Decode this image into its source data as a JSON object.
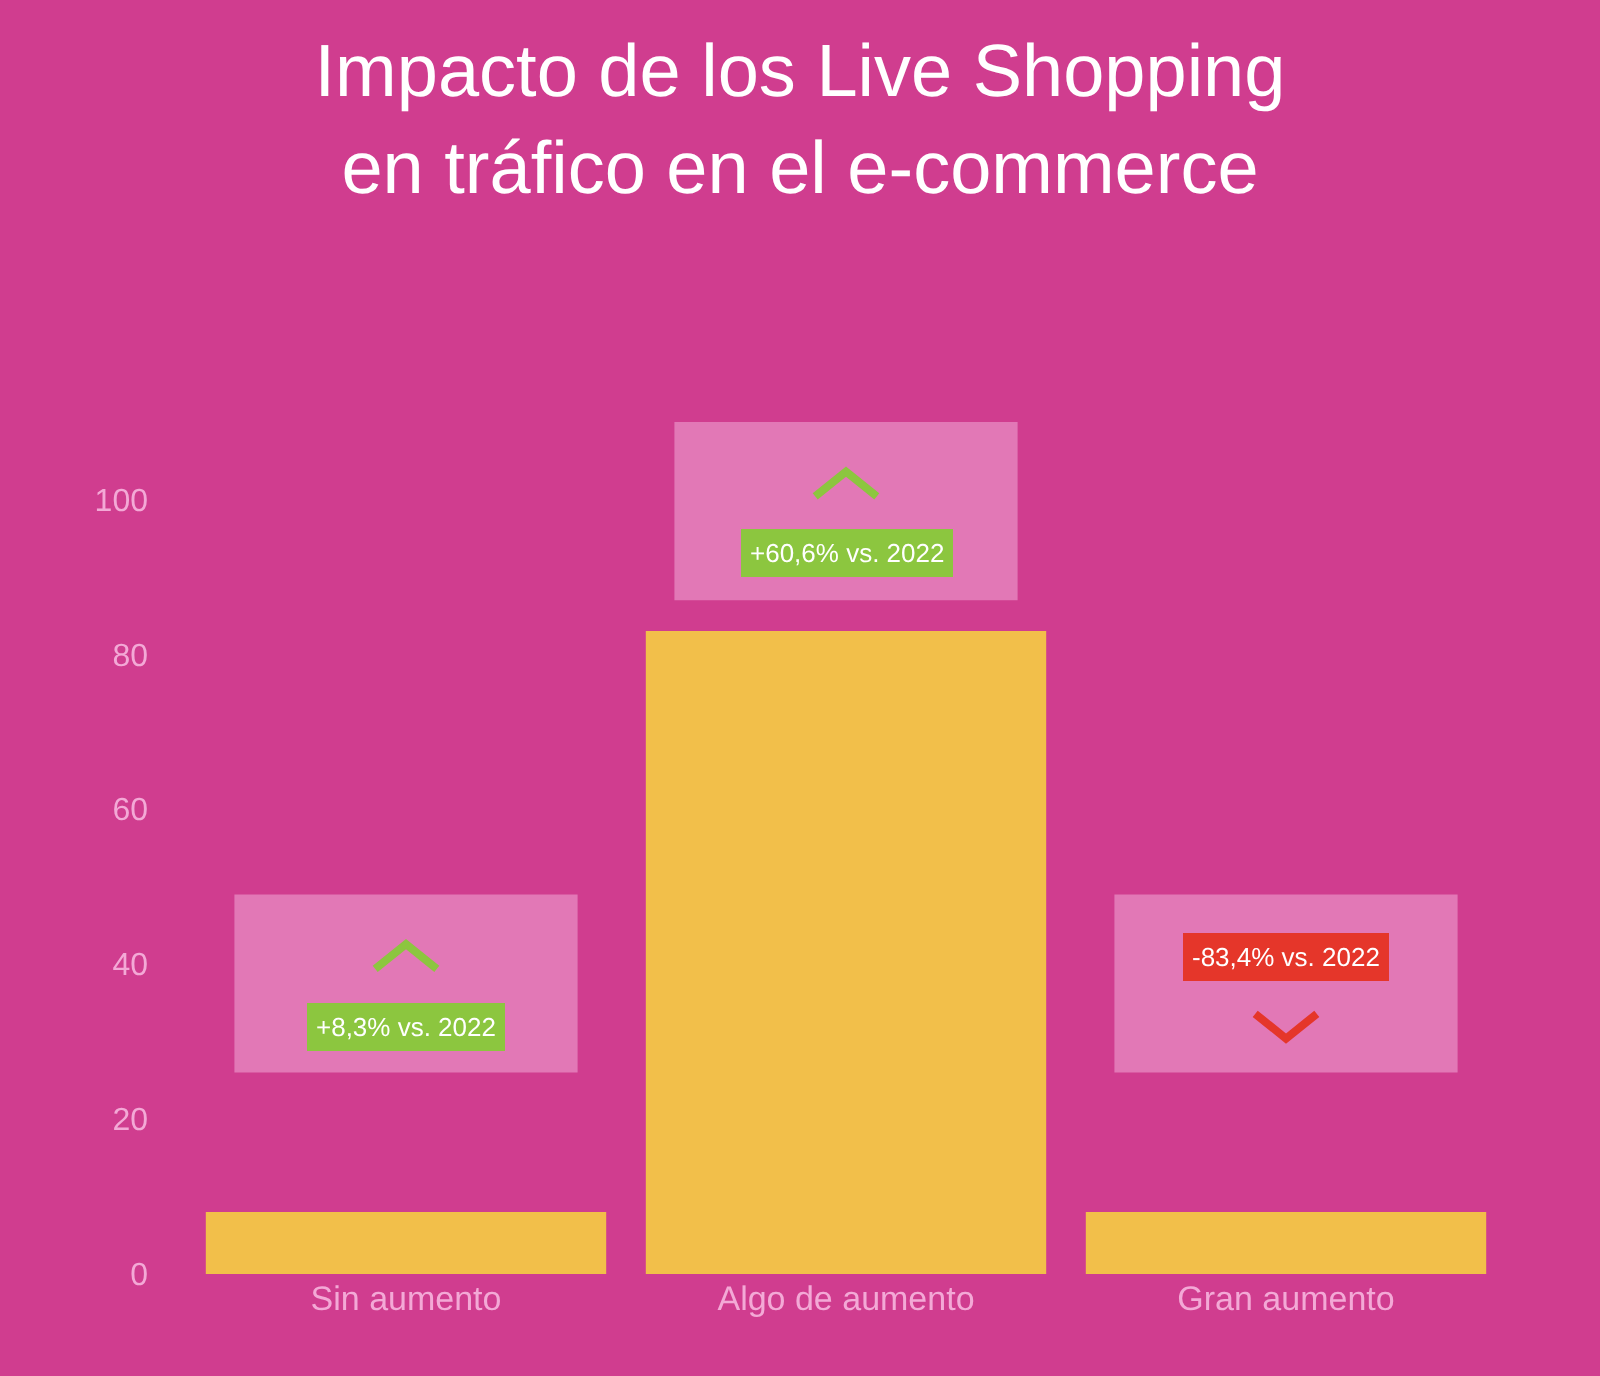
{
  "chart_data": {
    "type": "bar",
    "title": "Impacto de los Live Shopping\nen tráfico en el e-commerce",
    "categories": [
      "Sin aumento",
      "Algo de aumento",
      "Gran aumento"
    ],
    "values": [
      8,
      83,
      8
    ],
    "color": "#f2bf4a",
    "ylim": [
      0,
      110
    ],
    "yticks": [
      0,
      20,
      40,
      60,
      80,
      100
    ],
    "grid": false,
    "annotations": [
      "+8,3% vs. 2022",
      "+60,6% vs. 2022",
      "-83,4% vs. 2022"
    ]
  }
}
